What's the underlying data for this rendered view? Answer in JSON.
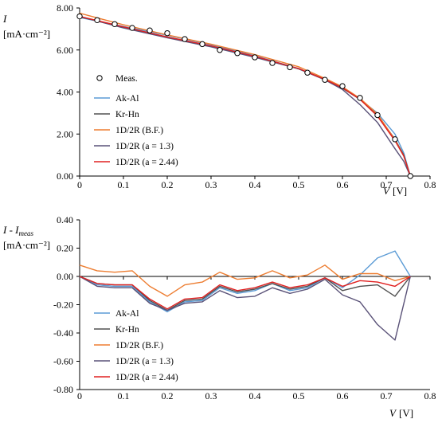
{
  "chart_data": [
    {
      "type": "line",
      "ylabel_main": "I",
      "ylabel_sub": "",
      "ylabel_unit": "[mA·cm⁻²]",
      "xlabel": "V",
      "xlabel_unit": "[V]",
      "xlim": [
        0,
        0.8
      ],
      "ylim": [
        0,
        8
      ],
      "xticks": [
        "0",
        "0.1",
        "0.2",
        "0.3",
        "0.4",
        "0.5",
        "0.6",
        "0.7",
        "0.8"
      ],
      "yticks": [
        "0.00",
        "2.00",
        "4.00",
        "6.00",
        "8.00"
      ],
      "legend_position": "bottom-left",
      "measurements": {
        "name": "Meas.",
        "x": [
          0,
          0.04,
          0.08,
          0.12,
          0.16,
          0.2,
          0.24,
          0.28,
          0.32,
          0.36,
          0.4,
          0.44,
          0.48,
          0.52,
          0.56,
          0.6,
          0.64,
          0.68,
          0.72,
          0.755
        ],
        "y": [
          7.6,
          7.42,
          7.23,
          7.05,
          6.93,
          6.8,
          6.52,
          6.28,
          6.0,
          5.85,
          5.65,
          5.38,
          5.18,
          4.92,
          4.58,
          4.28,
          3.72,
          2.9,
          1.75,
          0.0
        ]
      },
      "series": [
        {
          "name": "Ak-Al",
          "color": "#5b9bd5",
          "x": [
            0,
            0.1,
            0.2,
            0.3,
            0.4,
            0.5,
            0.56,
            0.6,
            0.64,
            0.68,
            0.72,
            0.74,
            0.755
          ],
          "y": [
            7.55,
            7.12,
            6.7,
            6.25,
            5.72,
            5.12,
            4.6,
            4.2,
            3.65,
            3.0,
            2.0,
            1.1,
            0.0
          ]
        },
        {
          "name": "Kr-Hn",
          "color": "#505050",
          "x": [
            0,
            0.1,
            0.2,
            0.3,
            0.4,
            0.5,
            0.56,
            0.6,
            0.64,
            0.68,
            0.72,
            0.74,
            0.755
          ],
          "y": [
            7.58,
            7.08,
            6.62,
            6.18,
            5.68,
            5.1,
            4.6,
            4.18,
            3.65,
            2.9,
            1.75,
            1.0,
            0.0
          ]
        },
        {
          "name": "1D/2R (B.F.)",
          "color": "#ed7d31",
          "x": [
            0,
            0.1,
            0.2,
            0.3,
            0.4,
            0.5,
            0.56,
            0.6,
            0.64,
            0.68,
            0.72,
            0.74,
            0.755
          ],
          "y": [
            7.75,
            7.2,
            6.72,
            6.28,
            5.78,
            5.2,
            4.65,
            4.25,
            3.7,
            2.95,
            1.72,
            0.95,
            0.0
          ]
        },
        {
          "name": "1D/2R (a = 1.3)",
          "color": "#5a5278",
          "x": [
            0,
            0.1,
            0.2,
            0.3,
            0.4,
            0.5,
            0.56,
            0.6,
            0.64,
            0.68,
            0.72,
            0.74,
            0.755
          ],
          "y": [
            7.6,
            7.05,
            6.58,
            6.15,
            5.65,
            5.1,
            4.58,
            4.12,
            3.4,
            2.55,
            1.3,
            0.7,
            0.0
          ]
        },
        {
          "name": "1D/2R (a = 2.44)",
          "color": "#e02020",
          "x": [
            0,
            0.1,
            0.2,
            0.3,
            0.4,
            0.5,
            0.56,
            0.6,
            0.64,
            0.68,
            0.72,
            0.74,
            0.755
          ],
          "y": [
            7.6,
            7.1,
            6.62,
            6.2,
            5.7,
            5.12,
            4.6,
            4.2,
            3.65,
            2.85,
            1.68,
            0.95,
            0.0
          ]
        }
      ]
    },
    {
      "type": "line",
      "ylabel_main": "I - I",
      "ylabel_sub": "meas",
      "ylabel_unit": "[mA·cm⁻²]",
      "xlabel": "V",
      "xlabel_unit": "[V]",
      "xlim": [
        0,
        0.8
      ],
      "ylim": [
        -0.8,
        0.4
      ],
      "xticks": [
        "0",
        "0.1",
        "0.2",
        "0.3",
        "0.4",
        "0.5",
        "0.6",
        "0.7",
        "0.8"
      ],
      "yticks": [
        "-0.80",
        "-0.60",
        "-0.40",
        "-0.20",
        "0.00",
        "0.20",
        "0.40"
      ],
      "legend_position": "bottom-left",
      "series": [
        {
          "name": "Ak-Al",
          "color": "#5b9bd5",
          "x": [
            0,
            0.04,
            0.08,
            0.12,
            0.16,
            0.2,
            0.24,
            0.28,
            0.32,
            0.36,
            0.4,
            0.44,
            0.48,
            0.52,
            0.56,
            0.6,
            0.64,
            0.68,
            0.72,
            0.755
          ],
          "y": [
            0,
            -0.06,
            -0.07,
            -0.07,
            -0.18,
            -0.25,
            -0.18,
            -0.17,
            -0.08,
            -0.12,
            -0.1,
            -0.05,
            -0.1,
            -0.08,
            -0.01,
            -0.08,
            0.01,
            0.13,
            0.18,
            0.0
          ]
        },
        {
          "name": "Kr-Hn",
          "color": "#505050",
          "x": [
            0,
            0.04,
            0.08,
            0.12,
            0.16,
            0.2,
            0.24,
            0.28,
            0.32,
            0.36,
            0.4,
            0.44,
            0.48,
            0.52,
            0.56,
            0.6,
            0.64,
            0.68,
            0.72,
            0.755
          ],
          "y": [
            0,
            -0.05,
            -0.06,
            -0.06,
            -0.17,
            -0.24,
            -0.17,
            -0.16,
            -0.07,
            -0.11,
            -0.09,
            -0.05,
            -0.09,
            -0.07,
            -0.01,
            -0.1,
            -0.07,
            -0.06,
            -0.14,
            0.0
          ]
        },
        {
          "name": "1D/2R (B.F.)",
          "color": "#ed7d31",
          "x": [
            0,
            0.04,
            0.08,
            0.12,
            0.16,
            0.2,
            0.24,
            0.28,
            0.32,
            0.36,
            0.4,
            0.44,
            0.48,
            0.52,
            0.56,
            0.6,
            0.64,
            0.68,
            0.72,
            0.755
          ],
          "y": [
            0.08,
            0.04,
            0.03,
            0.04,
            -0.07,
            -0.14,
            -0.06,
            -0.04,
            0.03,
            -0.02,
            -0.01,
            0.04,
            -0.01,
            0.01,
            0.08,
            -0.02,
            0.02,
            0.02,
            -0.03,
            0.0
          ]
        },
        {
          "name": "1D/2R (a = 1.3)",
          "color": "#5a5278",
          "x": [
            0,
            0.04,
            0.08,
            0.12,
            0.16,
            0.2,
            0.24,
            0.28,
            0.32,
            0.36,
            0.4,
            0.44,
            0.48,
            0.52,
            0.56,
            0.6,
            0.64,
            0.68,
            0.72,
            0.755
          ],
          "y": [
            0,
            -0.07,
            -0.08,
            -0.08,
            -0.19,
            -0.24,
            -0.19,
            -0.18,
            -0.1,
            -0.15,
            -0.14,
            -0.08,
            -0.12,
            -0.09,
            -0.02,
            -0.13,
            -0.18,
            -0.34,
            -0.45,
            0.0
          ]
        },
        {
          "name": "1D/2R (a = 2.44)",
          "color": "#e02020",
          "x": [
            0,
            0.04,
            0.08,
            0.12,
            0.16,
            0.2,
            0.24,
            0.28,
            0.32,
            0.36,
            0.4,
            0.44,
            0.48,
            0.52,
            0.56,
            0.6,
            0.64,
            0.68,
            0.72,
            0.755
          ],
          "y": [
            0,
            -0.05,
            -0.06,
            -0.06,
            -0.16,
            -0.23,
            -0.16,
            -0.15,
            -0.06,
            -0.1,
            -0.08,
            -0.04,
            -0.08,
            -0.06,
            -0.01,
            -0.07,
            -0.03,
            -0.04,
            -0.07,
            0.0
          ]
        }
      ]
    }
  ]
}
